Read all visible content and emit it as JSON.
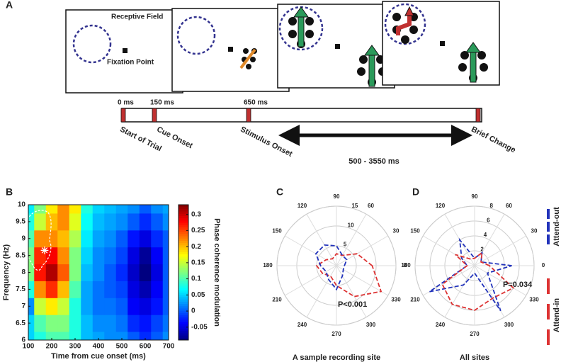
{
  "panel_a": {
    "label": "A",
    "receptive_field": "Receptive Field",
    "fixation_point": "Fixation Point",
    "times": [
      "0 ms",
      "150 ms",
      "650 ms"
    ],
    "events": [
      "Start of Trial",
      "Cue Onset",
      "Stimulus Onset",
      "Brief Change"
    ],
    "interval": "500 - 3550 ms"
  },
  "chart_data": [
    {
      "type": "heatmap",
      "label": "B",
      "xlabel": "Time from cue onset (ms)",
      "ylabel": "Frequency (Hz)",
      "colorbar_label": "Phase coherence modulation",
      "x": [
        100,
        150,
        200,
        250,
        300,
        350,
        400,
        450,
        500,
        550,
        600,
        650,
        700
      ],
      "y": [
        6,
        6.5,
        7,
        7.5,
        8,
        8.5,
        9,
        9.5,
        10
      ],
      "values": [
        [
          0.05,
          0.08,
          0.1,
          0.1,
          0.08,
          0.04,
          0.03,
          0.02,
          0.02,
          0.0,
          -0.02,
          0.0,
          0.02
        ],
        [
          0.05,
          0.1,
          0.12,
          0.12,
          0.08,
          0.04,
          0.02,
          0.02,
          0.01,
          -0.02,
          -0.03,
          -0.01,
          0.01
        ],
        [
          0.02,
          0.15,
          0.18,
          0.15,
          0.08,
          0.03,
          0.01,
          0.01,
          0.0,
          -0.04,
          -0.05,
          -0.03,
          0.0
        ],
        [
          0.08,
          0.22,
          0.26,
          0.2,
          0.1,
          0.03,
          0.01,
          0.0,
          -0.01,
          -0.05,
          -0.07,
          -0.04,
          0.0
        ],
        [
          0.12,
          0.27,
          0.31,
          0.24,
          0.12,
          0.04,
          0.02,
          0.0,
          -0.02,
          -0.06,
          -0.09,
          -0.05,
          0.0
        ],
        [
          0.12,
          0.26,
          0.28,
          0.22,
          0.12,
          0.05,
          0.02,
          0.01,
          -0.01,
          -0.05,
          -0.08,
          -0.04,
          0.0
        ],
        [
          0.1,
          0.22,
          0.22,
          0.2,
          0.14,
          0.06,
          0.03,
          0.02,
          0.0,
          -0.03,
          -0.05,
          -0.02,
          0.0
        ],
        [
          0.08,
          0.15,
          0.2,
          0.22,
          0.16,
          0.07,
          0.04,
          0.03,
          0.02,
          0.0,
          -0.02,
          0.0,
          0.02
        ],
        [
          0.06,
          0.12,
          0.18,
          0.22,
          0.18,
          0.08,
          0.05,
          0.04,
          0.03,
          0.02,
          0.0,
          0.02,
          0.03
        ]
      ],
      "xlim": [
        100,
        700
      ],
      "xticks": [
        100,
        200,
        300,
        400,
        500,
        600,
        700
      ],
      "ylim": [
        6,
        10
      ],
      "yticks": [
        6,
        6.5,
        7,
        7.5,
        8,
        8.5,
        9,
        9.5,
        10
      ],
      "clim": [
        -0.09,
        0.33
      ],
      "cticks": [
        -0.05,
        0,
        0.05,
        0.1,
        0.15,
        0.2,
        0.25,
        0.3
      ]
    },
    {
      "type": "polar",
      "label": "C",
      "caption": "A sample recording site",
      "annotation": "P<0.001",
      "rlim": [
        0,
        15
      ],
      "rticks": [
        5,
        10,
        15
      ],
      "theta": [
        0,
        30,
        60,
        90,
        120,
        150,
        180,
        210,
        240,
        270,
        300,
        330
      ],
      "series": [
        {
          "color": "#dd3333",
          "values": [
            9,
            6,
            3,
            3,
            2,
            3,
            5,
            4,
            3,
            5,
            9,
            13
          ]
        },
        {
          "color": "#2233bb",
          "values": [
            2,
            3,
            3,
            5,
            6,
            6,
            4,
            3,
            4,
            6,
            3,
            2
          ]
        }
      ]
    },
    {
      "type": "polar",
      "label": "D",
      "caption": "All sites",
      "annotation": "P=0.034",
      "rlim": [
        0,
        8
      ],
      "rticks": [
        2,
        4,
        6,
        8
      ],
      "theta": [
        0,
        30,
        60,
        90,
        120,
        150,
        180,
        210,
        240,
        270,
        300,
        330
      ],
      "series": [
        {
          "name": "Attend-out",
          "color": "#2233bb",
          "values": [
            5,
            1,
            2,
            1,
            4,
            2,
            1,
            7,
            3,
            1,
            7,
            2
          ]
        },
        {
          "name": "Attend-in",
          "color": "#dd3333",
          "values": [
            2,
            1,
            2,
            1,
            1,
            3,
            1,
            5,
            6,
            6,
            5,
            6
          ]
        }
      ]
    }
  ]
}
